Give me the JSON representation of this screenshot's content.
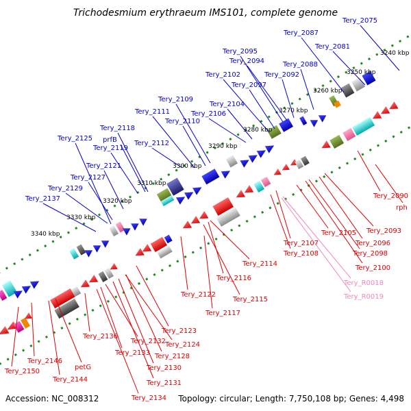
{
  "title": "Trichodesmium erythraeum IMS101, complete genome",
  "footer": {
    "accession": "Accession: NC_008312",
    "summary": "Topology: circular; Length: 7,750,108 bp; Genes: 4,498"
  },
  "colors": {
    "forward_label": "#0000cc",
    "reverse_label": "#dd0000",
    "rna_label": "#ee88bb",
    "backbone": "#808080",
    "ticks": "#228822"
  },
  "kbp_marks": [
    "3240 kbp",
    "3250 kbp",
    "3260 kbp",
    "3270 kbp",
    "3280 kbp",
    "3290 kbp",
    "3300 kbp",
    "3310 kbp",
    "3320 kbp",
    "3330 kbp",
    "3340 kbp"
  ],
  "forward_genes": [
    "Tery_2075",
    "Tery_2081",
    "Tery_2087",
    "Tery_2088",
    "Tery_2092",
    "Tery_2094",
    "Tery_2095",
    "Tery_2097",
    "Tery_2102",
    "Tery_2104",
    "Tery_2106",
    "Tery_2109",
    "Tery_2110",
    "Tery_2111",
    "Tery_2112",
    "Tery_2118",
    "prfB",
    "Tery_2119",
    "Tery_2125",
    "Tery_2121",
    "Tery_2127",
    "Tery_2129",
    "Tery_2137"
  ],
  "reverse_genes": [
    "Tery_2090",
    "rph",
    "Tery_2093",
    "Tery_2096",
    "Tery_2098",
    "Tery_2100",
    "Tery_2105",
    "Tery_2107",
    "Tery_2108",
    "Tery_2114",
    "Tery_2116",
    "Tery_2115",
    "Tery_2117",
    "Tery_2122",
    "Tery_2123",
    "Tery_2124",
    "Tery_2128",
    "Tery_2130",
    "Tery_2131",
    "Tery_2132",
    "Tery_2133",
    "Tery_2134",
    "Tery_2136",
    "petG",
    "Tery_2144",
    "Tery_2146",
    "Tery_2150"
  ],
  "rna_genes": [
    "Tery_R0018",
    "Tery_R0019"
  ]
}
